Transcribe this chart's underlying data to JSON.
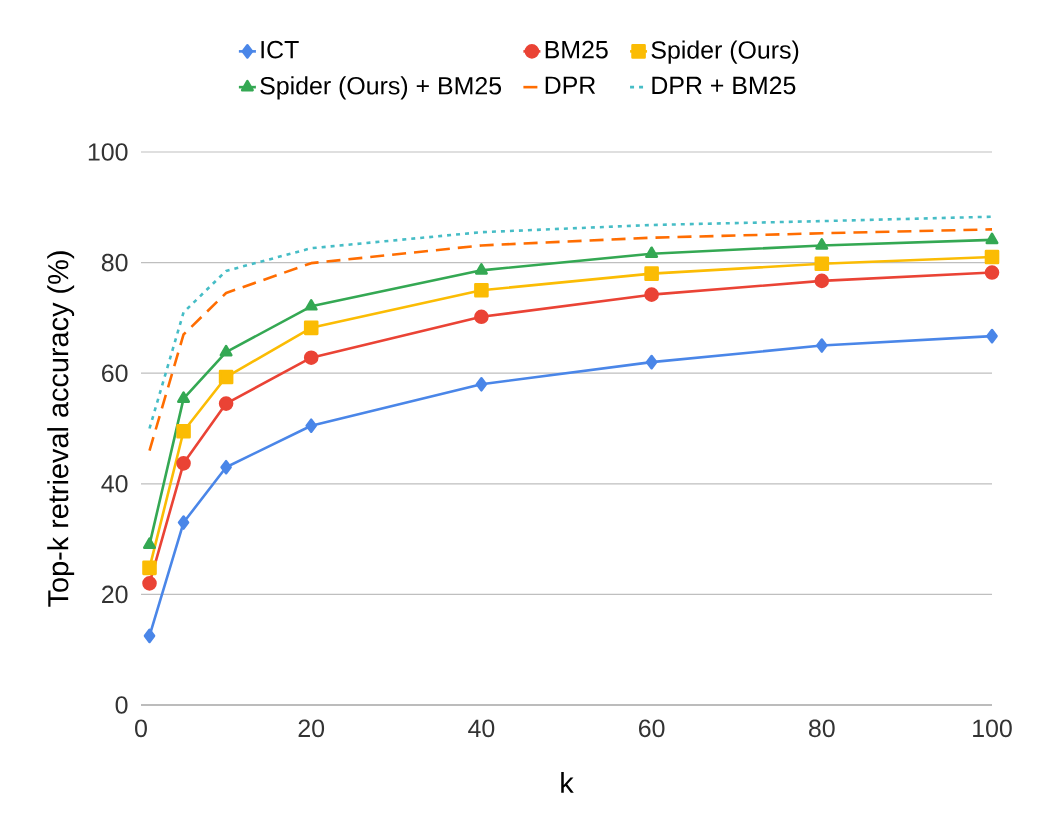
{
  "chart_data": {
    "type": "line",
    "xlabel": "k",
    "ylabel": "Top-k retrieval accuracy (%)",
    "xlim": [
      0,
      100
    ],
    "ylim": [
      0,
      100
    ],
    "xticks": [
      0,
      20,
      40,
      60,
      80,
      100
    ],
    "yticks": [
      0,
      20,
      40,
      60,
      80,
      100
    ],
    "grid": "y",
    "legend": "top",
    "x": [
      1,
      5,
      10,
      20,
      40,
      60,
      80,
      100
    ],
    "series": [
      {
        "name": "ICT",
        "color": "#4a86e8",
        "marker": "diamond",
        "line_style": "solid",
        "values": [
          12.5,
          33,
          43,
          50.5,
          58,
          62,
          65,
          66.7
        ]
      },
      {
        "name": "BM25",
        "color": "#ea4335",
        "marker": "circle",
        "line_style": "solid",
        "values": [
          22,
          43.7,
          54.5,
          62.8,
          70.2,
          74.2,
          76.7,
          78.2
        ]
      },
      {
        "name": "Spider (Ours)",
        "color": "#fbbc04",
        "marker": "square",
        "line_style": "solid",
        "values": [
          24.8,
          49.5,
          59.3,
          68.2,
          75,
          78,
          79.8,
          81
        ]
      },
      {
        "name": "Spider (Ours) + BM25",
        "color": "#34a853",
        "marker": "triangle",
        "line_style": "solid",
        "values": [
          29,
          55.4,
          63.8,
          72.1,
          78.6,
          81.6,
          83.1,
          84.1
        ]
      },
      {
        "name": "DPR",
        "color": "#ff6d01",
        "marker": "none",
        "line_style": "dashed",
        "values": [
          46,
          67,
          74.5,
          79.9,
          83.1,
          84.5,
          85.3,
          86
        ]
      },
      {
        "name": "DPR + BM25",
        "color": "#46bdc6",
        "marker": "none",
        "line_style": "dotted",
        "values": [
          50,
          71,
          78.5,
          82.6,
          85.5,
          86.8,
          87.5,
          88.3
        ]
      }
    ]
  }
}
